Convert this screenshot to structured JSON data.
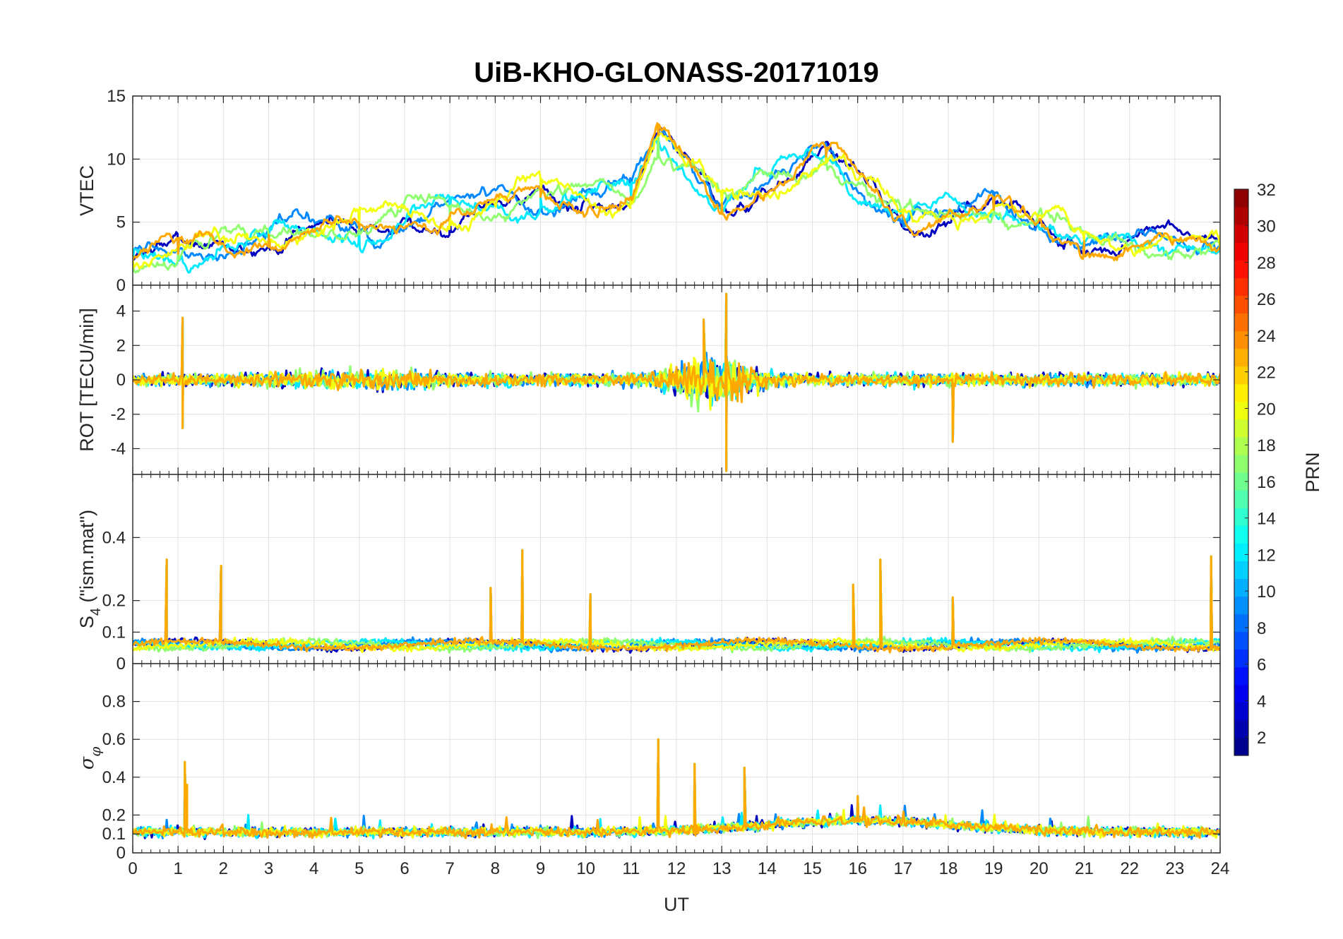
{
  "chart_data": {
    "title": "UiB-KHO-GLONASS-20171019",
    "xlabel": "UT",
    "x_range": [
      0,
      24
    ],
    "x_ticks": [
      0,
      1,
      2,
      3,
      4,
      5,
      6,
      7,
      8,
      9,
      10,
      11,
      12,
      13,
      14,
      15,
      16,
      17,
      18,
      19,
      20,
      21,
      22,
      23,
      24
    ],
    "colormap": "jet",
    "colorbar": {
      "label": "PRN",
      "range": [
        1,
        32
      ],
      "ticks": [
        2,
        4,
        6,
        8,
        10,
        12,
        14,
        16,
        18,
        20,
        22,
        24,
        26,
        28,
        30,
        32
      ],
      "placement": "right"
    },
    "series_prn": [
      3,
      9,
      12,
      17,
      20,
      23
    ],
    "panels": [
      {
        "type": "line",
        "ylabel": "VTEC",
        "ylim": [
          0,
          15
        ],
        "yticks": [
          0,
          5,
          10,
          15
        ],
        "grid": true,
        "features": [
          {
            "x": 0.0,
            "y": 2.0
          },
          {
            "x": 1.0,
            "y": 2.5
          },
          {
            "x": 3.0,
            "y": 4.0
          },
          {
            "x": 5.0,
            "y": 4.5
          },
          {
            "x": 7.0,
            "y": 5.5
          },
          {
            "x": 9.0,
            "y": 7.0
          },
          {
            "x": 11.0,
            "y": 7.0
          },
          {
            "x": 11.6,
            "y": 11.9
          },
          {
            "x": 13.0,
            "y": 6.5
          },
          {
            "x": 15.3,
            "y": 10.2
          },
          {
            "x": 17.0,
            "y": 5.5
          },
          {
            "x": 19.0,
            "y": 6.0
          },
          {
            "x": 21.0,
            "y": 3.5
          },
          {
            "x": 24.0,
            "y": 3.0
          }
        ]
      },
      {
        "type": "line",
        "ylabel": "ROT [TECU/min]",
        "ylim": [
          -5.5,
          5.5
        ],
        "yticks": [
          -4,
          -2,
          0,
          2,
          4
        ],
        "grid": true,
        "features": [
          {
            "x": 1.1,
            "y": 3.6
          },
          {
            "x": 1.1,
            "y": -2.8
          },
          {
            "x": 12.6,
            "y": 3.5
          },
          {
            "x": 13.1,
            "y": 5.0
          },
          {
            "x": 13.1,
            "y": -5.3
          },
          {
            "x": 18.1,
            "y": -3.6
          }
        ]
      },
      {
        "type": "line",
        "ylabel": "S4 (\"ism.mat\")",
        "ylim": [
          0,
          0.6
        ],
        "yticks": [
          0,
          0.1,
          0.2,
          0.4
        ],
        "grid": true,
        "features": [
          {
            "x": 0.75,
            "y": 0.33
          },
          {
            "x": 1.95,
            "y": 0.31
          },
          {
            "x": 7.9,
            "y": 0.24
          },
          {
            "x": 8.6,
            "y": 0.36
          },
          {
            "x": 10.1,
            "y": 0.22
          },
          {
            "x": 15.9,
            "y": 0.25
          },
          {
            "x": 16.5,
            "y": 0.33
          },
          {
            "x": 18.1,
            "y": 0.21
          },
          {
            "x": 23.8,
            "y": 0.34
          }
        ]
      },
      {
        "type": "line",
        "ylabel": "σ φ",
        "ylim": [
          0,
          1
        ],
        "yticks": [
          0,
          0.1,
          0.2,
          0.4,
          0.6,
          0.8
        ],
        "grid": true,
        "features": [
          {
            "x": 1.15,
            "y": 0.48
          },
          {
            "x": 1.2,
            "y": 0.36
          },
          {
            "x": 11.6,
            "y": 0.6
          },
          {
            "x": 12.4,
            "y": 0.47
          },
          {
            "x": 13.5,
            "y": 0.45
          },
          {
            "x": 16.0,
            "y": 0.3
          }
        ]
      }
    ]
  }
}
